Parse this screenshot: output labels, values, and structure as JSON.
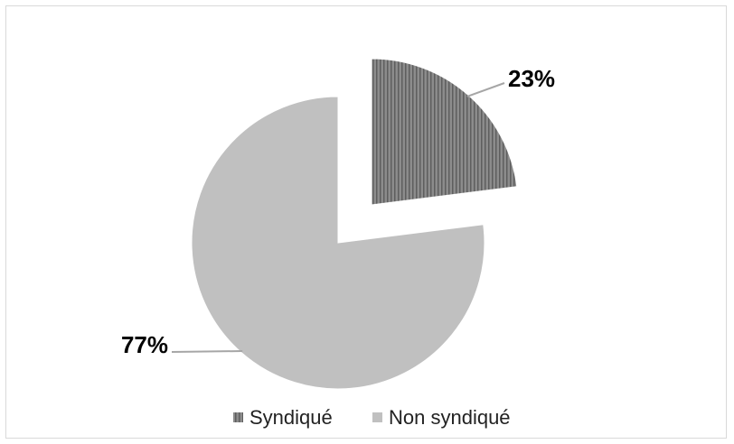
{
  "chart_data": {
    "type": "pie",
    "exploded_slice": "Syndiqué",
    "categories": [
      "Syndiqué",
      "Non syndiqué"
    ],
    "values": [
      23,
      77
    ],
    "data_labels": [
      "23%",
      "77%"
    ],
    "colors": [
      "#7f7f7f",
      "#c0c0c0"
    ],
    "slice_pattern": [
      "vertical-stripes",
      "solid"
    ],
    "legend": {
      "position": "bottom",
      "entries": [
        "Syndiqué",
        "Non syndiqué"
      ]
    },
    "title": ""
  }
}
